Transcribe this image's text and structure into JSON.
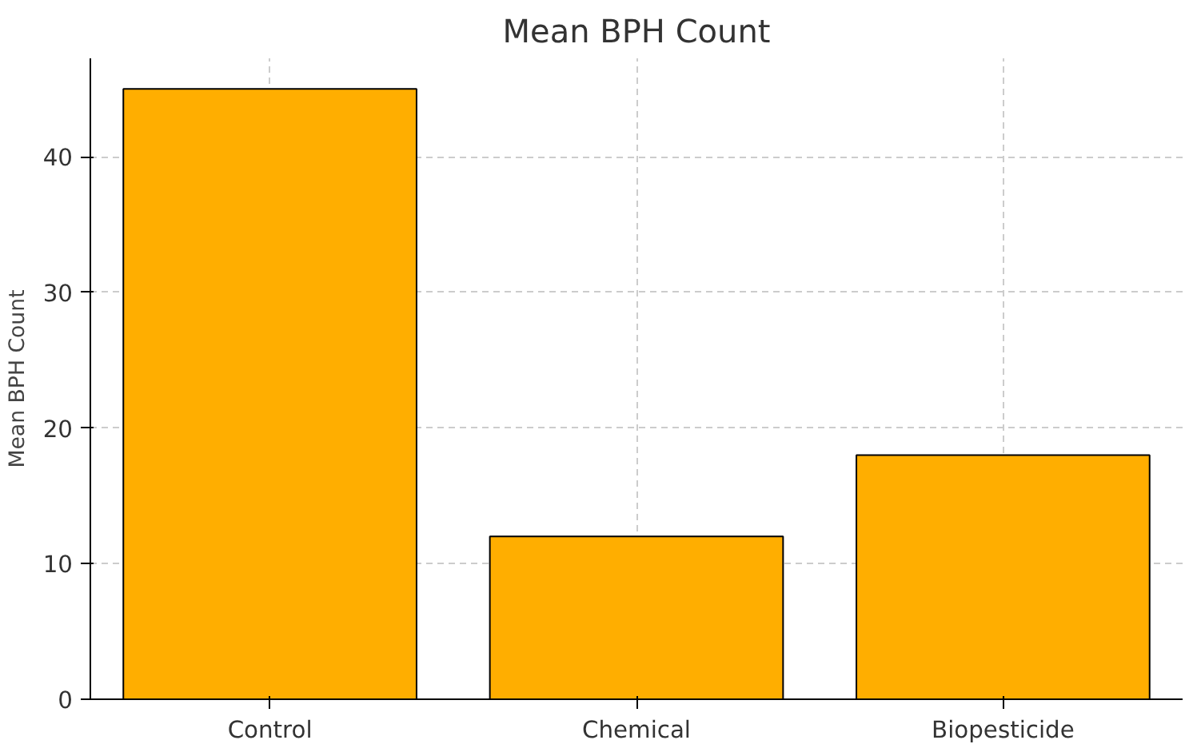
{
  "chart_data": {
    "type": "bar",
    "title": "Mean BPH Count",
    "ylabel": "Mean BPH Count",
    "categories": [
      "Control",
      "Chemical",
      "Biopesticide"
    ],
    "values": [
      45,
      12,
      18
    ],
    "color": "#ffae00",
    "ylim": [
      0,
      47.25
    ],
    "yticks": [
      0,
      10,
      20,
      30,
      40
    ],
    "grid": true
  }
}
